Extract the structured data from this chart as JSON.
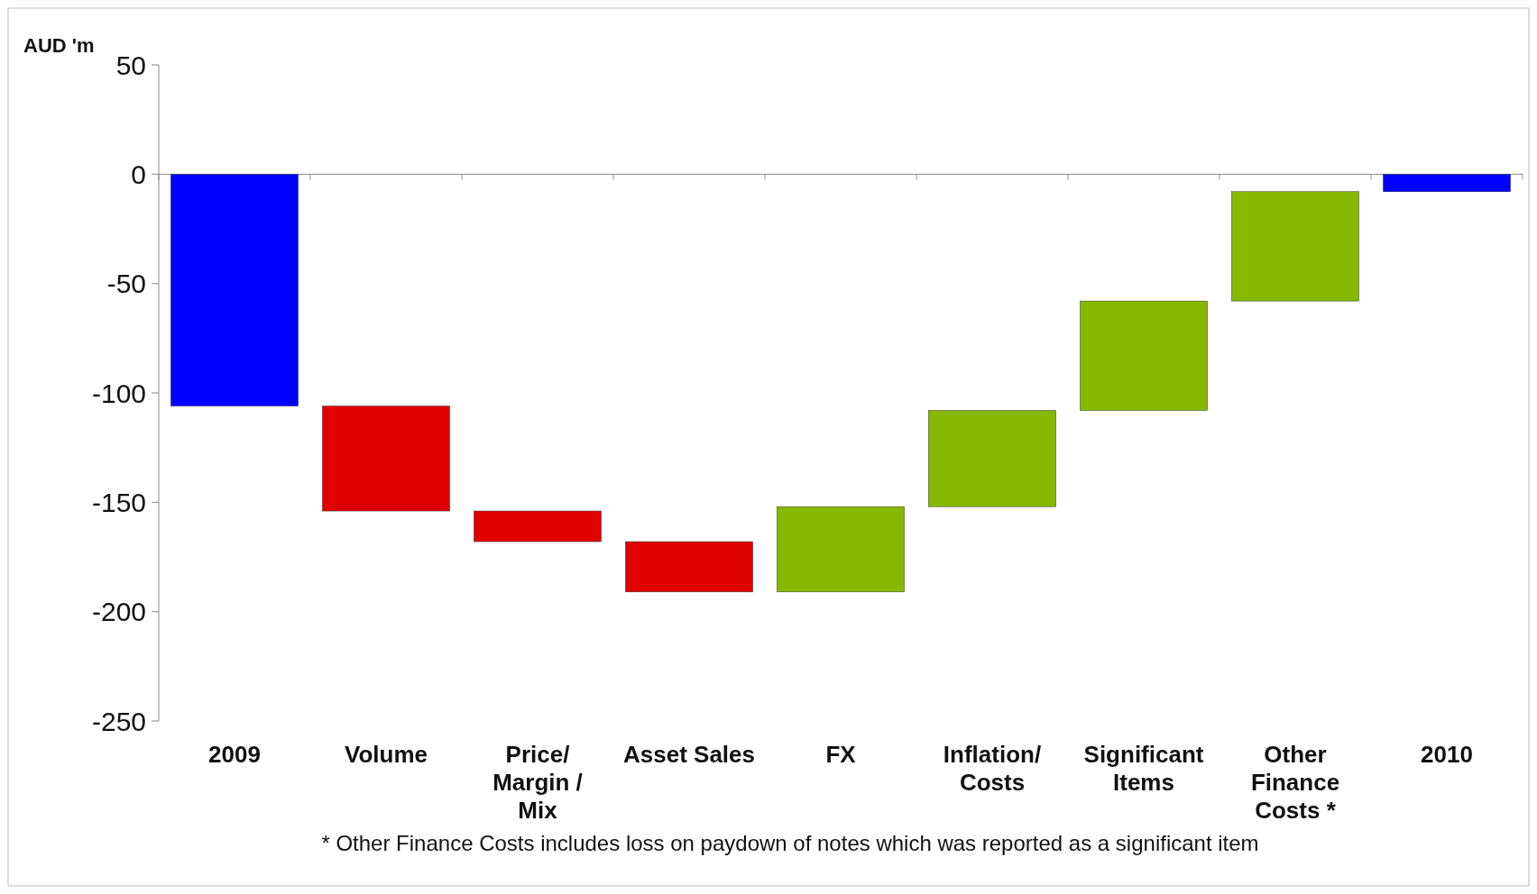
{
  "chart_data": {
    "type": "bar",
    "ylabel": "AUD 'm",
    "categories": [
      "2009",
      "Volume",
      "Price/\nMargin /\nMix",
      "Asset Sales",
      "FX",
      "Inflation/\nCosts",
      "Significant\nItems",
      "Other\nFinance\nCosts *",
      "2010"
    ],
    "base": [
      0,
      -106,
      -154,
      -168,
      -191,
      -152,
      -108,
      -58,
      0
    ],
    "values": [
      -106,
      -48,
      -14,
      -23,
      39,
      44,
      50,
      50,
      -8
    ],
    "colors": [
      "#0000ff",
      "#e00000",
      "#e00000",
      "#e00000",
      "#86b800",
      "#86b800",
      "#86b800",
      "#86b800",
      "#0000ff"
    ],
    "ylim": [
      -250,
      50
    ],
    "yticks": [
      -250,
      -200,
      -150,
      -100,
      -50,
      0,
      50
    ],
    "annotations": [
      "* Other Finance Costs includes loss on paydown of notes  which was reported as a significant item"
    ]
  }
}
